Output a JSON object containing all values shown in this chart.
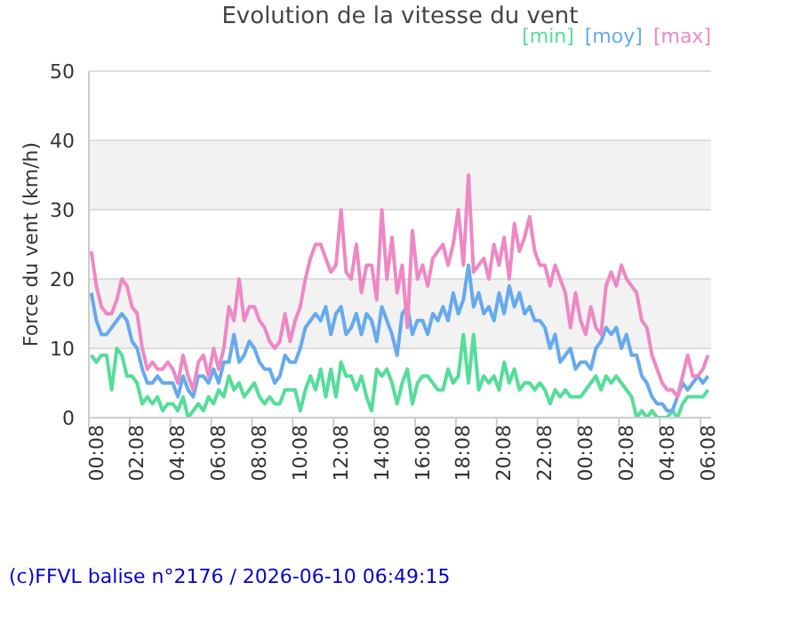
{
  "chart_data": {
    "type": "line",
    "title": "Evolution de la vitesse du vent",
    "ylabel": "Force du vent (km/h)",
    "annotations": [
      "(c)FFVL balise n°2176 / 2026-06-10 06:49:15"
    ],
    "x": [
      "2026-06-09T00:15",
      "2026-06-09T00:30",
      "2026-06-09T00:45",
      "2026-06-09T01:00",
      "2026-06-09T01:15",
      "2026-06-09T01:30",
      "2026-06-09T01:45",
      "2026-06-09T02:00",
      "2026-06-09T02:15",
      "2026-06-09T02:30",
      "2026-06-09T02:45",
      "2026-06-09T03:00",
      "2026-06-09T03:15",
      "2026-06-09T03:30",
      "2026-06-09T03:45",
      "2026-06-09T04:00",
      "2026-06-09T04:15",
      "2026-06-09T04:30",
      "2026-06-09T04:45",
      "2026-06-09T05:00",
      "2026-06-09T05:15",
      "2026-06-09T05:30",
      "2026-06-09T05:45",
      "2026-06-09T06:00",
      "2026-06-09T06:15",
      "2026-06-09T06:30",
      "2026-06-09T06:45",
      "2026-06-09T07:00",
      "2026-06-09T07:15",
      "2026-06-09T07:30",
      "2026-06-09T07:45",
      "2026-06-09T08:00",
      "2026-06-09T08:15",
      "2026-06-09T08:30",
      "2026-06-09T08:45",
      "2026-06-09T09:00",
      "2026-06-09T09:15",
      "2026-06-09T09:30",
      "2026-06-09T09:45",
      "2026-06-09T10:00",
      "2026-06-09T10:15",
      "2026-06-09T10:30",
      "2026-06-09T10:45",
      "2026-06-09T11:00",
      "2026-06-09T11:15",
      "2026-06-09T11:30",
      "2026-06-09T11:45",
      "2026-06-09T12:00",
      "2026-06-09T12:15",
      "2026-06-09T12:30",
      "2026-06-09T12:45",
      "2026-06-09T13:00",
      "2026-06-09T13:15",
      "2026-06-09T13:30",
      "2026-06-09T13:45",
      "2026-06-09T14:00",
      "2026-06-09T14:15",
      "2026-06-09T14:30",
      "2026-06-09T14:45",
      "2026-06-09T15:00",
      "2026-06-09T15:15",
      "2026-06-09T15:30",
      "2026-06-09T15:45",
      "2026-06-09T16:00",
      "2026-06-09T16:15",
      "2026-06-09T16:30",
      "2026-06-09T16:45",
      "2026-06-09T17:00",
      "2026-06-09T17:15",
      "2026-06-09T17:30",
      "2026-06-09T17:45",
      "2026-06-09T18:00",
      "2026-06-09T18:15",
      "2026-06-09T18:30",
      "2026-06-09T18:45",
      "2026-06-09T19:00",
      "2026-06-09T19:15",
      "2026-06-09T19:30",
      "2026-06-09T19:45",
      "2026-06-09T20:00",
      "2026-06-09T20:15",
      "2026-06-09T20:30",
      "2026-06-09T20:45",
      "2026-06-09T21:00",
      "2026-06-09T21:15",
      "2026-06-09T21:30",
      "2026-06-09T21:45",
      "2026-06-09T22:00",
      "2026-06-09T22:15",
      "2026-06-09T22:30",
      "2026-06-09T22:45",
      "2026-06-09T23:00",
      "2026-06-09T23:15",
      "2026-06-09T23:30",
      "2026-06-09T23:45",
      "2026-06-10T00:00",
      "2026-06-10T00:15",
      "2026-06-10T00:30",
      "2026-06-10T00:45",
      "2026-06-10T01:00",
      "2026-06-10T01:15",
      "2026-06-10T01:30",
      "2026-06-10T01:45",
      "2026-06-10T02:00",
      "2026-06-10T02:15",
      "2026-06-10T02:30",
      "2026-06-10T02:45",
      "2026-06-10T03:00",
      "2026-06-10T03:15",
      "2026-06-10T03:30",
      "2026-06-10T03:45",
      "2026-06-10T04:00",
      "2026-06-10T04:15",
      "2026-06-10T04:30",
      "2026-06-10T04:45",
      "2026-06-10T05:00",
      "2026-06-10T05:15",
      "2026-06-10T05:30",
      "2026-06-10T05:45",
      "2026-06-10T06:00",
      "2026-06-10T06:15",
      "2026-06-10T06:30"
    ],
    "series": [
      {
        "name": "[min]",
        "color": "#55dd99",
        "values": [
          9,
          8,
          9,
          9,
          4,
          10,
          9,
          6,
          6,
          5,
          2,
          3,
          2,
          3,
          1,
          2,
          2,
          1,
          3,
          0,
          1,
          2,
          1,
          3,
          2,
          4,
          3,
          6,
          4,
          5,
          3,
          4,
          5,
          3,
          2,
          3,
          2,
          2,
          4,
          4,
          4,
          1,
          4,
          6,
          4,
          7,
          3,
          7,
          3,
          8,
          6,
          6,
          4,
          6,
          3,
          1,
          7,
          6,
          7,
          5,
          2,
          5,
          7,
          2,
          5,
          6,
          6,
          5,
          4,
          4,
          7,
          5,
          6,
          12,
          5,
          12,
          4,
          6,
          5,
          6,
          4,
          8,
          5,
          7,
          4,
          5,
          5,
          4,
          5,
          4,
          2,
          4,
          3,
          4,
          3,
          3,
          3,
          4,
          5,
          6,
          4,
          6,
          5,
          6,
          5,
          4,
          3,
          0,
          1,
          0,
          1,
          0,
          0,
          0,
          1,
          0,
          2,
          3,
          3,
          3,
          3,
          4
        ]
      },
      {
        "name": "[moy]",
        "color": "#66aaee",
        "values": [
          18,
          14,
          12,
          12,
          13,
          14,
          15,
          14,
          11,
          10,
          7,
          5,
          5,
          6,
          5,
          5,
          5,
          3,
          6,
          4,
          3,
          6,
          6,
          5,
          7,
          5,
          8,
          8,
          12,
          8,
          9,
          11,
          10,
          8,
          7,
          7,
          5,
          6,
          9,
          8,
          8,
          10,
          13,
          14,
          15,
          14,
          16,
          12,
          15,
          16,
          12,
          13,
          15,
          12,
          15,
          14,
          11,
          16,
          14,
          12,
          9,
          15,
          16,
          12,
          14,
          14,
          12,
          15,
          14,
          16,
          14,
          18,
          15,
          17,
          22,
          16,
          18,
          15,
          16,
          14,
          18,
          15,
          19,
          16,
          18,
          15,
          16,
          14,
          14,
          13,
          10,
          12,
          8,
          9,
          10,
          7,
          8,
          8,
          7,
          10,
          11,
          13,
          12,
          13,
          10,
          12,
          9,
          9,
          6,
          5,
          3,
          2,
          2,
          1,
          1,
          3,
          5,
          4,
          5,
          6,
          5,
          6
        ]
      },
      {
        "name": "[max]",
        "color": "#ee88c4",
        "values": [
          24,
          19,
          16,
          15,
          15,
          17,
          20,
          19,
          16,
          15,
          10,
          7,
          8,
          7,
          7,
          8,
          7,
          5,
          9,
          6,
          4,
          8,
          9,
          6,
          10,
          7,
          10,
          16,
          14,
          20,
          14,
          16,
          16,
          14,
          13,
          11,
          10,
          11,
          15,
          11,
          14,
          16,
          20,
          23,
          25,
          25,
          23,
          21,
          22,
          30,
          21,
          20,
          25,
          18,
          22,
          22,
          17,
          30,
          20,
          26,
          18,
          22,
          13,
          27,
          20,
          22,
          19,
          23,
          24,
          25,
          22,
          25,
          30,
          22,
          35,
          21,
          22,
          23,
          20,
          25,
          22,
          26,
          20,
          28,
          24,
          26,
          29,
          24,
          22,
          22,
          19,
          22,
          20,
          18,
          13,
          18,
          14,
          12,
          16,
          13,
          12,
          19,
          21,
          19,
          22,
          20,
          19,
          18,
          14,
          13,
          9,
          7,
          5,
          4,
          4,
          3,
          6,
          9,
          6,
          6,
          7,
          9
        ]
      }
    ],
    "xlim": [
      "2026-06-09T00:08",
      "2026-06-10T06:39"
    ],
    "xticks": [
      {
        "value": "2026-06-09T00:08",
        "label": "00:08"
      },
      {
        "value": "2026-06-09T02:08",
        "label": "02:08"
      },
      {
        "value": "2026-06-09T04:08",
        "label": "04:08"
      },
      {
        "value": "2026-06-09T06:08",
        "label": "06:08"
      },
      {
        "value": "2026-06-09T08:08",
        "label": "08:08"
      },
      {
        "value": "2026-06-09T10:08",
        "label": "10:08"
      },
      {
        "value": "2026-06-09T12:08",
        "label": "12:08"
      },
      {
        "value": "2026-06-09T14:08",
        "label": "14:08"
      },
      {
        "value": "2026-06-09T16:08",
        "label": "16:08"
      },
      {
        "value": "2026-06-09T18:08",
        "label": "18:08"
      },
      {
        "value": "2026-06-09T20:08",
        "label": "20:08"
      },
      {
        "value": "2026-06-09T22:08",
        "label": "22:08"
      },
      {
        "value": "2026-06-10T00:08",
        "label": "00:08"
      },
      {
        "value": "2026-06-10T02:08",
        "label": "02:08"
      },
      {
        "value": "2026-06-10T04:08",
        "label": "04:08"
      },
      {
        "value": "2026-06-10T06:08",
        "label": "06:08"
      }
    ],
    "ylim": [
      0,
      50
    ],
    "yticks": [
      0,
      10,
      20,
      30,
      40,
      50
    ],
    "grid": "y",
    "legend": "top right",
    "marker": "none",
    "line_style": "solid"
  }
}
